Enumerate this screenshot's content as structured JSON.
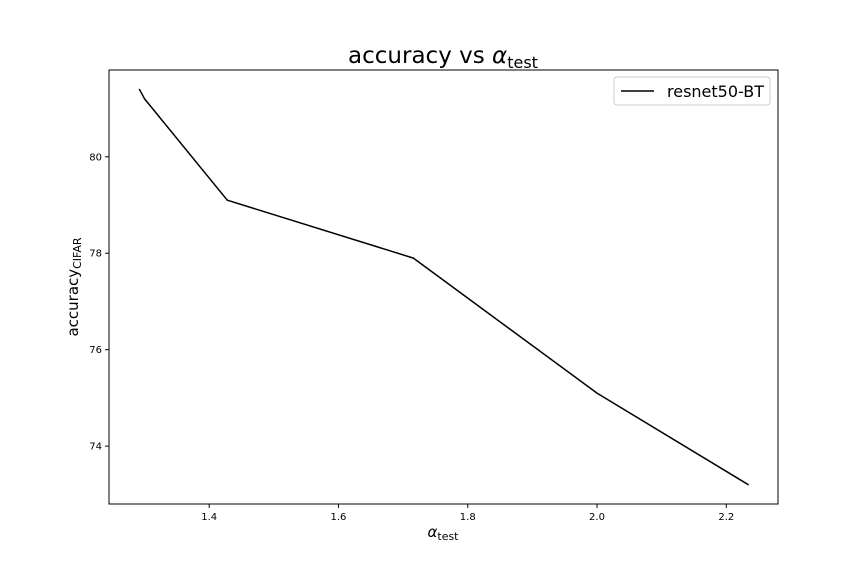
{
  "chart_data": {
    "type": "line",
    "title": {
      "main": "accuracy vs ",
      "symbol": "α",
      "sub": "test"
    },
    "xlabel": {
      "symbol": "α",
      "sub": "test"
    },
    "ylabel": {
      "main": "accuracy",
      "sub": "CIFAR"
    },
    "xlim": [
      1.245,
      2.28
    ],
    "ylim": [
      72.8,
      81.8
    ],
    "xticks": [
      1.4,
      1.6,
      1.8,
      2.0,
      2.2
    ],
    "xtick_labels": [
      "1.4",
      "1.6",
      "1.8",
      "2.0",
      "2.2"
    ],
    "yticks": [
      74,
      76,
      78,
      80
    ],
    "ytick_labels": [
      "74",
      "76",
      "78",
      "80"
    ],
    "grid": false,
    "legend_position": "top-right",
    "series": [
      {
        "name": "resnet50-BT",
        "color": "#000000",
        "x": [
          1.292,
          1.3,
          1.428,
          1.716,
          2.0,
          2.234
        ],
        "y": [
          81.4,
          81.2,
          79.1,
          77.9,
          75.1,
          73.2
        ]
      }
    ]
  }
}
